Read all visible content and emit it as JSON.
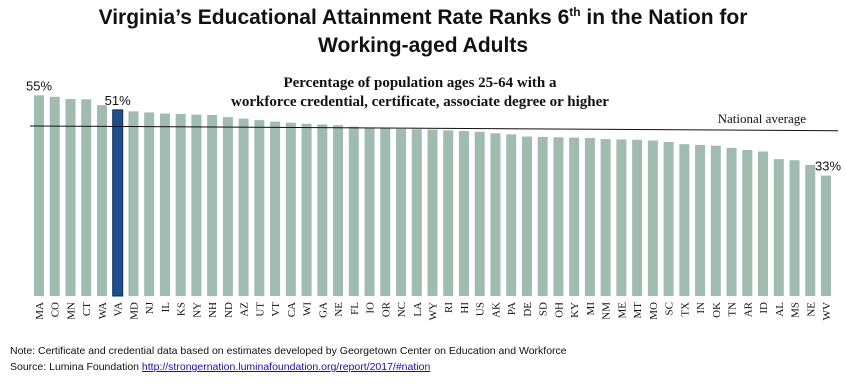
{
  "title": {
    "line1_before_sup": "Virginia’s Educational Attainment Rate Ranks 6",
    "line1_sup": "th",
    "line1_after_sup": " in the Nation for",
    "line2": "Working-aged Adults"
  },
  "subtitle": {
    "line1": "Percentage of population ages 25-64 with a",
    "line2": "workforce credential, certificate, associate degree or higher"
  },
  "chart_data": {
    "type": "bar",
    "categories": [
      "MA",
      "CO",
      "MN",
      "CT",
      "WA",
      "VA",
      "MD",
      "NJ",
      "IL",
      "KS",
      "NY",
      "NH",
      "ND",
      "AZ",
      "UT",
      "VT",
      "CA",
      "WI",
      "GA",
      "NE",
      "FL",
      "IO",
      "OR",
      "NC",
      "LA",
      "WY",
      "RI",
      "HI",
      "US",
      "AK",
      "PA",
      "DE",
      "SD",
      "OH",
      "KY",
      "MI",
      "NM",
      "ME",
      "MT",
      "MO",
      "SC",
      "TX",
      "IN",
      "OK",
      "TN",
      "AR",
      "ID",
      "AL",
      "MS",
      "NE",
      "WV"
    ],
    "values": [
      55.0,
      54.6,
      54.0,
      53.9,
      52.3,
      51.0,
      50.6,
      50.3,
      50.0,
      49.9,
      49.7,
      49.6,
      49.0,
      48.6,
      48.2,
      47.8,
      47.5,
      47.2,
      47.0,
      46.8,
      46.4,
      46.1,
      46.0,
      45.8,
      45.7,
      45.6,
      45.4,
      45.2,
      45.0,
      44.6,
      44.3,
      43.7,
      43.6,
      43.5,
      43.4,
      43.3,
      43.0,
      42.9,
      42.8,
      42.6,
      42.2,
      41.6,
      41.4,
      41.2,
      40.6,
      40.0,
      39.6,
      37.5,
      37.2,
      35.9,
      33.0
    ],
    "highlight_category": "VA",
    "data_labels": [
      {
        "category": "MA",
        "text": "55%"
      },
      {
        "category": "VA",
        "text": "51%"
      },
      {
        "category": "WV",
        "text": "33%"
      }
    ],
    "reference_line": {
      "label": "National average",
      "start_value": 46.6,
      "end_value": 45.3
    },
    "ylim": [
      0,
      57
    ],
    "xlabel": "",
    "ylabel": "",
    "grid": false,
    "colors": {
      "bar": "#9fbcae",
      "highlight": "#1f4e8c",
      "highlight_outline": "#0c2d5c",
      "reference_line": "#111111"
    }
  },
  "notes": {
    "line1": "Note: Certificate and credential data based on estimates developed by Georgetown Center on Education and Workforce",
    "source_prefix": "Source: Lumina Foundation ",
    "source_link": "http://strongernation.luminafoundation.org/report/2017/#nation"
  }
}
